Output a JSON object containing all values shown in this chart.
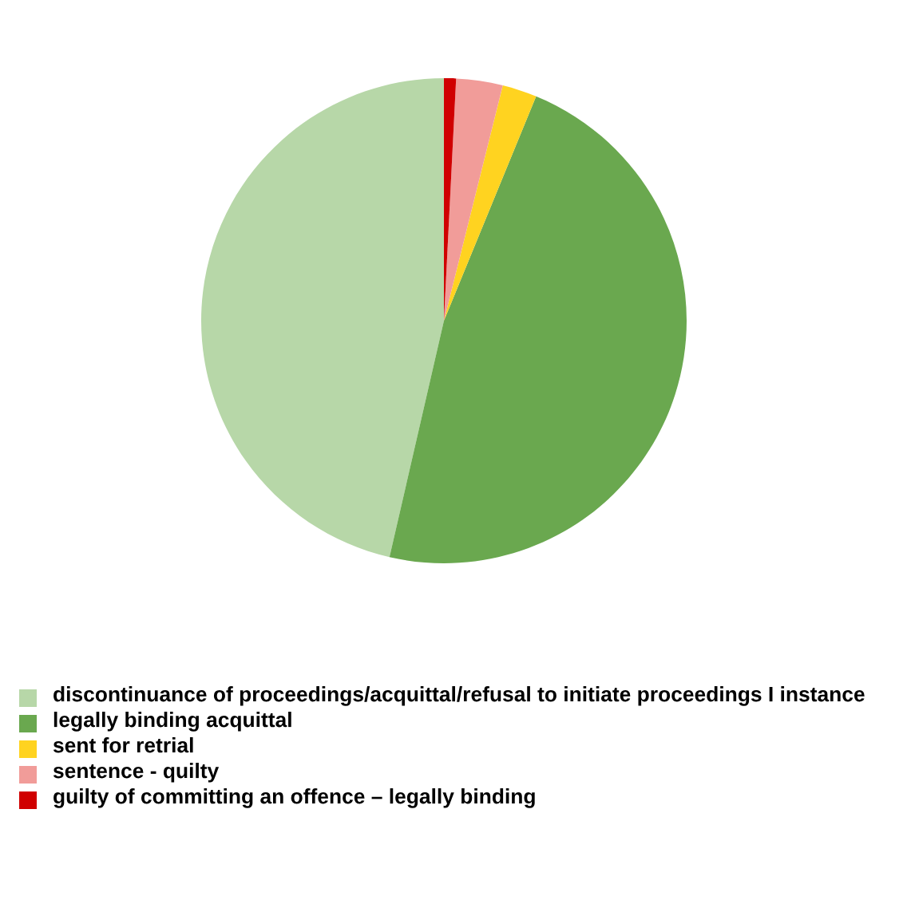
{
  "chart_data": {
    "type": "pie",
    "categories": [
      "discontinuance of proceedings/acquittal/refusal to initiate proceedings I instance",
      "legally binding acquittal",
      "sent for retrial",
      "sentence - quilty",
      "guilty of committing an offence – legally binding"
    ],
    "values": [
      46.4,
      47.4,
      2.3,
      3.1,
      0.8
    ],
    "colors": [
      "#b7d7a8",
      "#6aa84f",
      "#ffd320",
      "#f19c99",
      "#d00000"
    ],
    "legend": "bottom"
  }
}
